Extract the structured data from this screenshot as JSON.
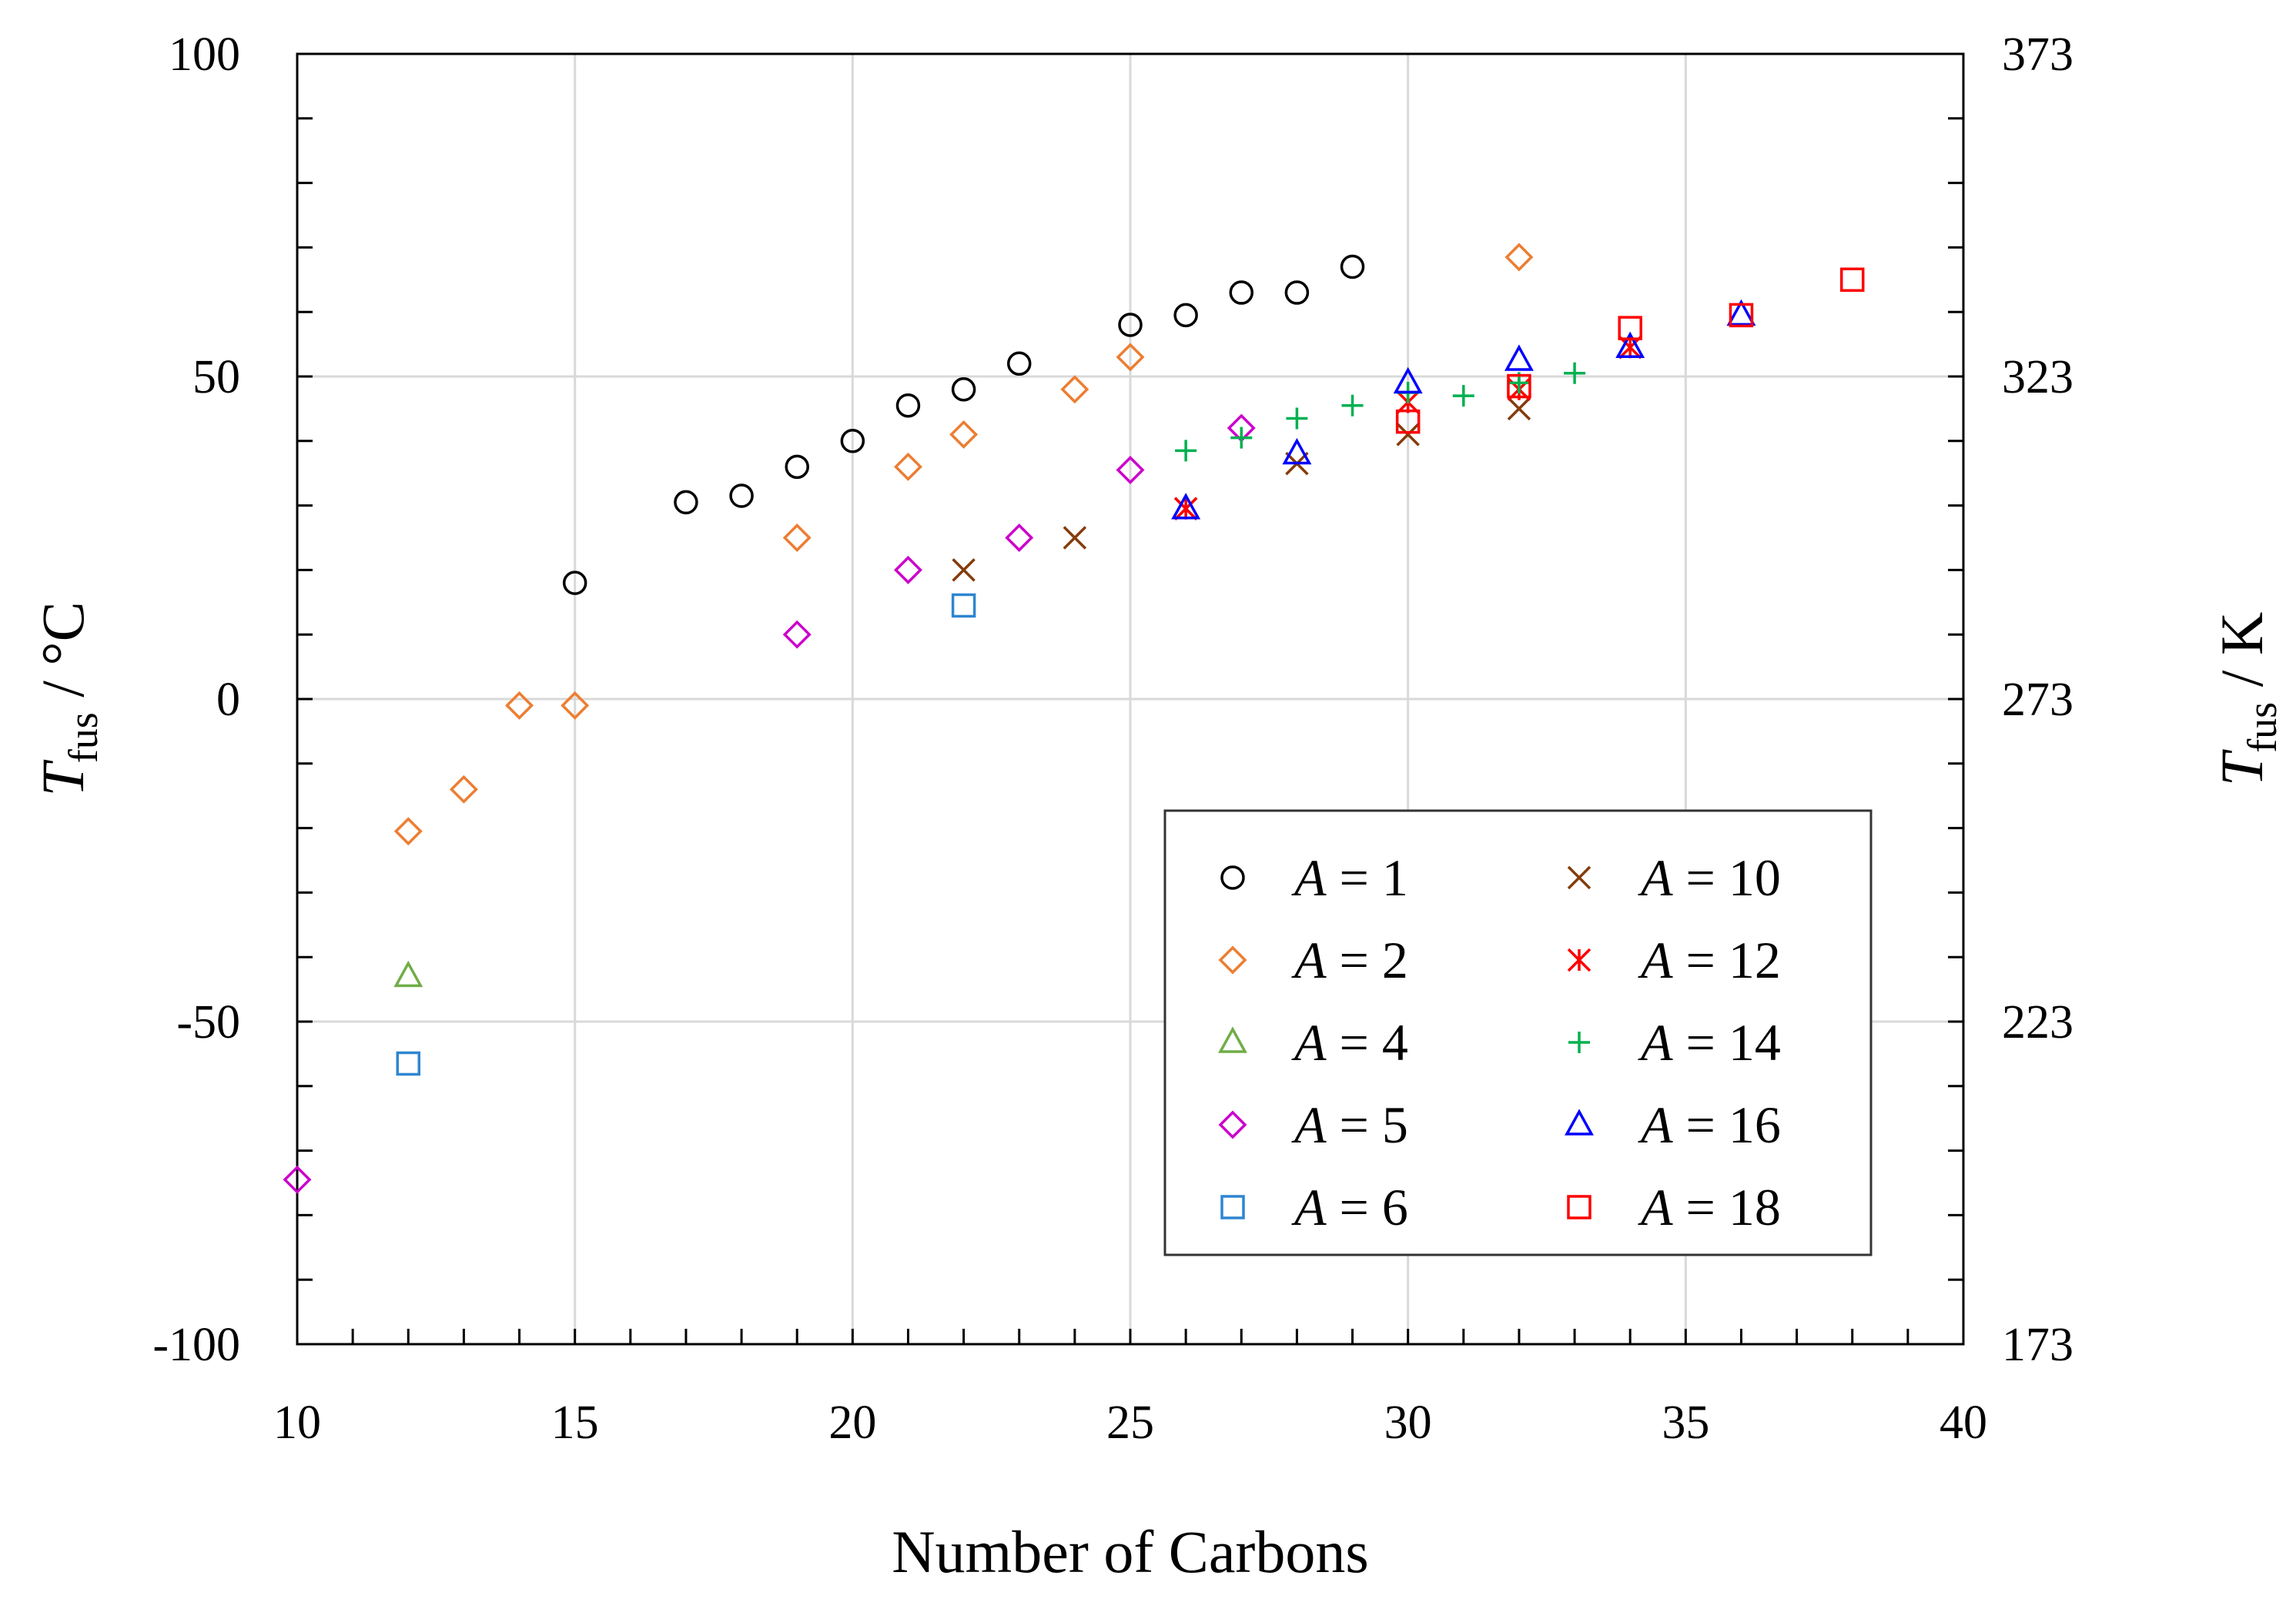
{
  "chart_data": {
    "type": "scatter",
    "xlabel": "Number of Carbons",
    "ylabel_symbol": "T",
    "ylabel_subscript": "fus",
    "ylabel_unit": " / °C",
    "y2label_symbol": "T",
    "y2label_subscript": "fus",
    "y2label_unit": " / K",
    "xlim": [
      10,
      40
    ],
    "ylim": [
      -100,
      100
    ],
    "y2lim": [
      173,
      373
    ],
    "x_ticks": [
      10,
      15,
      20,
      25,
      30,
      35,
      40
    ],
    "y_ticks": [
      -100,
      -50,
      0,
      50,
      100
    ],
    "y2_ticks": [
      173,
      223,
      273,
      323,
      373
    ],
    "grid": true,
    "legend_position": "bottom-right",
    "legend_variable": "A",
    "series": [
      {
        "name": "A = 1",
        "number": "1",
        "marker": "circle",
        "color": "#000000",
        "x": [
          15,
          17,
          18,
          19,
          20,
          21,
          22,
          23,
          25,
          26,
          27,
          28,
          29
        ],
        "y": [
          18,
          30.5,
          31.5,
          36,
          40,
          45.5,
          48,
          52,
          58,
          59.5,
          63,
          63,
          67
        ]
      },
      {
        "name": "A = 2",
        "number": "2",
        "marker": "diamond",
        "color": "#ED7D31",
        "x": [
          12,
          13,
          14,
          15,
          19,
          21,
          22,
          24,
          25,
          32
        ],
        "y": [
          -20.5,
          -14,
          -1,
          -1,
          25,
          36,
          41,
          48,
          53,
          68.5
        ]
      },
      {
        "name": "A = 4",
        "number": "4",
        "marker": "triangle",
        "color": "#70AD47",
        "x": [
          12
        ],
        "y": [
          -43
        ]
      },
      {
        "name": "A = 5",
        "number": "5",
        "marker": "diamond",
        "color": "#CC00CC",
        "x": [
          10,
          19,
          21,
          23,
          25,
          27
        ],
        "y": [
          -74.5,
          10,
          20,
          25,
          35.5,
          42
        ]
      },
      {
        "name": "A = 6",
        "number": "6",
        "marker": "square",
        "color": "#2E86D1",
        "x": [
          12,
          22
        ],
        "y": [
          -56.5,
          14.5
        ]
      },
      {
        "name": "A = 10",
        "number": "10",
        "marker": "x",
        "color": "#843C0C",
        "x": [
          22,
          24,
          26,
          28,
          30,
          32
        ],
        "y": [
          20,
          25,
          29.5,
          36.5,
          41,
          45
        ]
      },
      {
        "name": "A = 12",
        "number": "12",
        "marker": "asterisk",
        "color": "#FF0000",
        "x": [
          26,
          30,
          32,
          34
        ],
        "y": [
          29.5,
          46,
          48,
          54.5
        ]
      },
      {
        "name": "A = 14",
        "number": "14",
        "marker": "plus",
        "color": "#00B050",
        "x": [
          26,
          27,
          28,
          29,
          30,
          31,
          32,
          33
        ],
        "y": [
          38.5,
          40.5,
          43.5,
          45.5,
          47.5,
          47,
          49,
          50.5
        ]
      },
      {
        "name": "A = 16",
        "number": "16",
        "marker": "triangle",
        "color": "#0000FF",
        "x": [
          26,
          28,
          30,
          32,
          34,
          36
        ],
        "y": [
          29.5,
          38,
          49,
          52.5,
          54.5,
          59.5
        ]
      },
      {
        "name": "A = 18",
        "number": "18",
        "marker": "square",
        "color": "#FF0000",
        "x": [
          30,
          32,
          34,
          36,
          38
        ],
        "y": [
          43,
          48.5,
          57.5,
          59.5,
          65
        ]
      }
    ]
  }
}
